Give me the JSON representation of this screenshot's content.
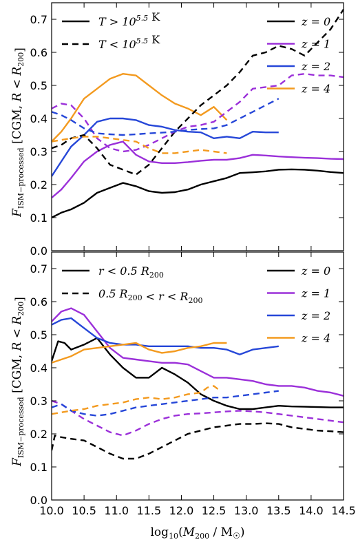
{
  "chart_data": [
    {
      "type": "line",
      "panel": "top",
      "ylabel": "F_ISM−processed [CGM, R < R200]",
      "xlim": [
        10.0,
        14.5
      ],
      "ylim": [
        0.0,
        0.75
      ],
      "xticks": [
        "10.0",
        "10.5",
        "11.0",
        "11.5",
        "12.0",
        "12.5",
        "13.0",
        "13.5",
        "14.0",
        "14.5"
      ],
      "yticks": [
        "0.0",
        "0.1",
        "0.2",
        "0.3",
        "0.4",
        "0.5",
        "0.6",
        "0.7"
      ],
      "legend_linestyle": [
        {
          "label": "T > 10^5.5 K",
          "style": "solid"
        },
        {
          "label": "T < 10^5.5 K",
          "style": "dashed"
        }
      ],
      "legend_redshift": [
        {
          "label": "z = 0",
          "color": "#000000"
        },
        {
          "label": "z = 1",
          "color": "#9b30d9"
        },
        {
          "label": "z = 2",
          "color": "#2647d8"
        },
        {
          "label": "z = 4",
          "color": "#f39a1f"
        }
      ],
      "series": [
        {
          "name": "z = 0",
          "style": "solid",
          "color": "#000000",
          "x": [
            10.0,
            10.15,
            10.3,
            10.5,
            10.7,
            10.9,
            11.1,
            11.3,
            11.5,
            11.7,
            11.9,
            12.1,
            12.3,
            12.5,
            12.7,
            12.9,
            13.1,
            13.3,
            13.5,
            13.7,
            13.9,
            14.1,
            14.3,
            14.5
          ],
          "y": [
            0.1,
            0.115,
            0.125,
            0.145,
            0.175,
            0.19,
            0.205,
            0.195,
            0.18,
            0.175,
            0.177,
            0.185,
            0.2,
            0.21,
            0.22,
            0.235,
            0.237,
            0.24,
            0.245,
            0.246,
            0.245,
            0.242,
            0.238,
            0.235
          ]
        },
        {
          "name": "z = 1",
          "style": "solid",
          "color": "#9b30d9",
          "x": [
            10.0,
            10.15,
            10.3,
            10.5,
            10.7,
            10.9,
            11.1,
            11.3,
            11.5,
            11.7,
            11.9,
            12.1,
            12.3,
            12.5,
            12.7,
            12.9,
            13.1,
            13.3,
            13.5,
            13.7,
            13.9,
            14.1,
            14.3,
            14.5
          ],
          "y": [
            0.16,
            0.185,
            0.22,
            0.27,
            0.3,
            0.32,
            0.33,
            0.29,
            0.27,
            0.265,
            0.265,
            0.268,
            0.272,
            0.275,
            0.275,
            0.28,
            0.29,
            0.288,
            0.285,
            0.283,
            0.281,
            0.28,
            0.278,
            0.277
          ]
        },
        {
          "name": "z = 2",
          "style": "solid",
          "color": "#2647d8",
          "x": [
            10.0,
            10.15,
            10.3,
            10.5,
            10.7,
            10.9,
            11.1,
            11.3,
            11.5,
            11.7,
            11.9,
            12.1,
            12.3,
            12.5,
            12.7,
            12.9,
            13.1,
            13.3,
            13.5
          ],
          "y": [
            0.225,
            0.27,
            0.315,
            0.35,
            0.39,
            0.4,
            0.4,
            0.395,
            0.38,
            0.375,
            0.365,
            0.36,
            0.358,
            0.34,
            0.345,
            0.34,
            0.36,
            0.358,
            0.358
          ]
        },
        {
          "name": "z = 4",
          "style": "solid",
          "color": "#f39a1f",
          "x": [
            10.0,
            10.15,
            10.3,
            10.5,
            10.7,
            10.9,
            11.1,
            11.3,
            11.5,
            11.7,
            11.9,
            12.1,
            12.3,
            12.5,
            12.7
          ],
          "y": [
            0.33,
            0.36,
            0.4,
            0.46,
            0.49,
            0.52,
            0.535,
            0.53,
            0.5,
            0.47,
            0.445,
            0.43,
            0.41,
            0.435,
            0.395
          ]
        },
        {
          "name": "z = 0",
          "style": "dashed",
          "color": "#000000",
          "x": [
            10.0,
            10.15,
            10.3,
            10.5,
            10.7,
            10.9,
            11.1,
            11.3,
            11.5,
            11.7,
            11.9,
            12.1,
            12.3,
            12.5,
            12.7,
            12.9,
            13.1,
            13.3,
            13.5,
            13.7,
            13.9,
            14.1,
            14.3,
            14.5
          ],
          "y": [
            0.31,
            0.32,
            0.34,
            0.35,
            0.31,
            0.26,
            0.245,
            0.23,
            0.26,
            0.31,
            0.36,
            0.4,
            0.44,
            0.47,
            0.5,
            0.54,
            0.59,
            0.6,
            0.62,
            0.61,
            0.59,
            0.63,
            0.67,
            0.73
          ]
        },
        {
          "name": "z = 1",
          "style": "dashed",
          "color": "#9b30d9",
          "x": [
            10.0,
            10.15,
            10.3,
            10.5,
            10.7,
            10.9,
            11.1,
            11.3,
            11.5,
            11.7,
            11.9,
            12.1,
            12.3,
            12.5,
            12.7,
            12.9,
            13.1,
            13.3,
            13.5,
            13.7,
            13.9,
            14.1,
            14.3,
            14.5
          ],
          "y": [
            0.43,
            0.445,
            0.44,
            0.4,
            0.34,
            0.31,
            0.3,
            0.305,
            0.32,
            0.34,
            0.36,
            0.375,
            0.38,
            0.39,
            0.42,
            0.45,
            0.49,
            0.495,
            0.5,
            0.53,
            0.535,
            0.53,
            0.53,
            0.525
          ]
        },
        {
          "name": "z = 2",
          "style": "dashed",
          "color": "#2647d8",
          "x": [
            10.0,
            10.15,
            10.3,
            10.5,
            10.7,
            10.9,
            11.1,
            11.3,
            11.5,
            11.7,
            11.9,
            12.1,
            12.3,
            12.5,
            12.7,
            12.9,
            13.1,
            13.3,
            13.5
          ],
          "y": [
            0.42,
            0.41,
            0.395,
            0.37,
            0.355,
            0.352,
            0.35,
            0.352,
            0.355,
            0.357,
            0.36,
            0.365,
            0.368,
            0.37,
            0.38,
            0.4,
            0.42,
            0.44,
            0.46
          ]
        },
        {
          "name": "z = 4",
          "style": "dashed",
          "color": "#f39a1f",
          "x": [
            10.0,
            10.15,
            10.3,
            10.5,
            10.7,
            10.9,
            11.1,
            11.3,
            11.5,
            11.7,
            11.9,
            12.1,
            12.3,
            12.5,
            12.7
          ],
          "y": [
            0.33,
            0.335,
            0.34,
            0.345,
            0.345,
            0.34,
            0.335,
            0.33,
            0.31,
            0.295,
            0.295,
            0.3,
            0.305,
            0.3,
            0.295
          ]
        }
      ]
    },
    {
      "type": "line",
      "panel": "bottom",
      "ylabel": "F_ISM−processed [CGM, R < R200]",
      "xlabel": "log10(M200 / M☉)",
      "xlim": [
        10.0,
        14.5
      ],
      "ylim": [
        0.0,
        0.75
      ],
      "xticks": [
        "10.0",
        "10.5",
        "11.0",
        "11.5",
        "12.0",
        "12.5",
        "13.0",
        "13.5",
        "14.0",
        "14.5"
      ],
      "yticks": [
        "0.0",
        "0.1",
        "0.2",
        "0.3",
        "0.4",
        "0.5",
        "0.6",
        "0.7"
      ],
      "legend_linestyle": [
        {
          "label": "r < 0.5 R200",
          "style": "solid"
        },
        {
          "label": "0.5 R200 < r < R200",
          "style": "dashed"
        }
      ],
      "legend_redshift": [
        {
          "label": "z = 0",
          "color": "#000000"
        },
        {
          "label": "z = 1",
          "color": "#9b30d9"
        },
        {
          "label": "z = 2",
          "color": "#2647d8"
        },
        {
          "label": "z = 4",
          "color": "#f39a1f"
        }
      ],
      "series": [
        {
          "name": "z = 0",
          "style": "solid",
          "color": "#000000",
          "x": [
            10.0,
            10.1,
            10.2,
            10.3,
            10.5,
            10.7,
            10.9,
            11.1,
            11.3,
            11.5,
            11.6,
            11.7,
            11.9,
            12.1,
            12.3,
            12.5,
            12.7,
            12.9,
            13.1,
            13.3,
            13.5,
            13.7,
            13.9,
            14.1,
            14.3,
            14.5
          ],
          "y": [
            0.42,
            0.48,
            0.475,
            0.455,
            0.47,
            0.49,
            0.44,
            0.4,
            0.37,
            0.37,
            0.385,
            0.4,
            0.38,
            0.355,
            0.32,
            0.3,
            0.285,
            0.275,
            0.275,
            0.28,
            0.285,
            0.283,
            0.282,
            0.281,
            0.28,
            0.28
          ]
        },
        {
          "name": "z = 1",
          "style": "solid",
          "color": "#9b30d9",
          "x": [
            10.0,
            10.15,
            10.3,
            10.5,
            10.7,
            10.9,
            11.1,
            11.3,
            11.5,
            11.7,
            11.9,
            12.1,
            12.3,
            12.5,
            12.7,
            12.9,
            13.1,
            13.3,
            13.5,
            13.7,
            13.9,
            14.1,
            14.3,
            14.5
          ],
          "y": [
            0.54,
            0.57,
            0.58,
            0.56,
            0.51,
            0.46,
            0.43,
            0.425,
            0.42,
            0.415,
            0.415,
            0.41,
            0.39,
            0.37,
            0.37,
            0.365,
            0.36,
            0.35,
            0.345,
            0.345,
            0.34,
            0.33,
            0.325,
            0.315
          ]
        },
        {
          "name": "z = 2",
          "style": "solid",
          "color": "#2647d8",
          "x": [
            10.0,
            10.15,
            10.3,
            10.5,
            10.7,
            10.9,
            11.1,
            11.3,
            11.5,
            11.7,
            11.9,
            12.1,
            12.3,
            12.5,
            12.7,
            12.9,
            13.1,
            13.3,
            13.5
          ],
          "y": [
            0.53,
            0.545,
            0.55,
            0.52,
            0.49,
            0.475,
            0.47,
            0.47,
            0.465,
            0.465,
            0.465,
            0.465,
            0.46,
            0.46,
            0.455,
            0.44,
            0.455,
            0.46,
            0.465
          ]
        },
        {
          "name": "z = 4",
          "style": "solid",
          "color": "#f39a1f",
          "x": [
            10.0,
            10.15,
            10.3,
            10.5,
            10.7,
            10.9,
            11.1,
            11.3,
            11.5,
            11.7,
            11.9,
            12.1,
            12.3,
            12.5,
            12.7
          ],
          "y": [
            0.415,
            0.425,
            0.435,
            0.455,
            0.46,
            0.465,
            0.47,
            0.475,
            0.455,
            0.445,
            0.45,
            0.46,
            0.465,
            0.475,
            0.475
          ]
        },
        {
          "name": "z = 0",
          "style": "dashed",
          "color": "#000000",
          "x": [
            10.0,
            10.05,
            10.15,
            10.3,
            10.5,
            10.7,
            10.9,
            11.1,
            11.3,
            11.5,
            11.7,
            11.9,
            12.1,
            12.3,
            12.5,
            12.7,
            12.9,
            13.1,
            13.3,
            13.5,
            13.7,
            13.9,
            14.1,
            14.3,
            14.5
          ],
          "y": [
            0.15,
            0.195,
            0.19,
            0.185,
            0.18,
            0.16,
            0.14,
            0.125,
            0.125,
            0.14,
            0.16,
            0.18,
            0.2,
            0.21,
            0.22,
            0.225,
            0.23,
            0.23,
            0.232,
            0.23,
            0.22,
            0.215,
            0.21,
            0.208,
            0.205
          ]
        },
        {
          "name": "z = 1",
          "style": "dashed",
          "color": "#9b30d9",
          "x": [
            10.0,
            10.15,
            10.3,
            10.5,
            10.7,
            10.9,
            11.1,
            11.3,
            11.5,
            11.7,
            11.9,
            12.1,
            12.3,
            12.5,
            12.7,
            12.9,
            13.1,
            13.3,
            13.5,
            13.7,
            13.9,
            14.1,
            14.3,
            14.5
          ],
          "y": [
            0.3,
            0.29,
            0.27,
            0.245,
            0.225,
            0.205,
            0.195,
            0.21,
            0.23,
            0.245,
            0.255,
            0.26,
            0.262,
            0.265,
            0.268,
            0.27,
            0.268,
            0.265,
            0.26,
            0.255,
            0.25,
            0.245,
            0.24,
            0.235
          ]
        },
        {
          "name": "z = 2",
          "style": "dashed",
          "color": "#2647d8",
          "x": [
            10.0,
            10.15,
            10.3,
            10.5,
            10.7,
            10.9,
            11.1,
            11.3,
            11.5,
            11.7,
            11.9,
            12.1,
            12.3,
            12.5,
            12.7,
            12.9,
            13.1,
            13.3,
            13.5
          ],
          "y": [
            0.28,
            0.29,
            0.27,
            0.26,
            0.255,
            0.26,
            0.27,
            0.28,
            0.285,
            0.29,
            0.295,
            0.3,
            0.305,
            0.31,
            0.31,
            0.315,
            0.32,
            0.325,
            0.33
          ]
        },
        {
          "name": "z = 4",
          "style": "dashed",
          "color": "#f39a1f",
          "x": [
            10.0,
            10.15,
            10.3,
            10.5,
            10.7,
            10.9,
            11.1,
            11.3,
            11.5,
            11.7,
            11.9,
            12.1,
            12.3,
            12.4,
            12.5,
            12.6
          ],
          "y": [
            0.26,
            0.265,
            0.27,
            0.275,
            0.285,
            0.29,
            0.295,
            0.305,
            0.31,
            0.305,
            0.31,
            0.32,
            0.325,
            0.34,
            0.345,
            0.33
          ]
        }
      ]
    }
  ]
}
